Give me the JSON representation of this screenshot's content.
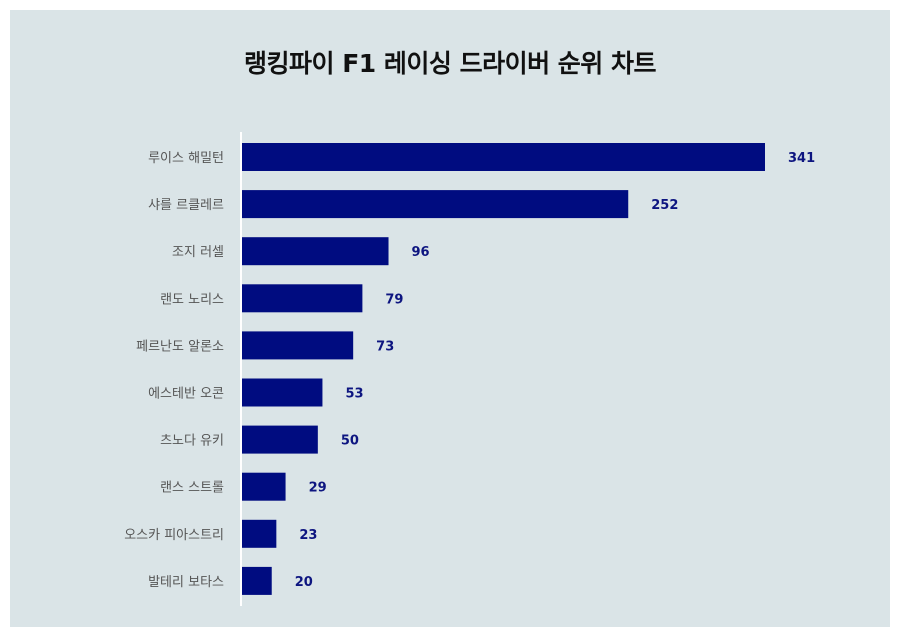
{
  "chart_data": {
    "type": "bar",
    "orientation": "horizontal",
    "title": "랭킹파이 F1 레이싱 드라이버 순위 차트",
    "categories": [
      "루이스 해밀턴",
      "샤를 르클레르",
      "조지 러셀",
      "랜도 노리스",
      "페르난도 알론소",
      "에스테반 오콘",
      "츠노다 유키",
      "랜스 스트롤",
      "오스카 피아스트리",
      "발테리 보타스"
    ],
    "values": [
      341,
      252,
      96,
      79,
      73,
      53,
      50,
      29,
      23,
      20
    ],
    "xlim": [
      0,
      341
    ],
    "grid": false,
    "legend": "none",
    "bar_color": "#000c80",
    "background": "#dae4e7"
  }
}
